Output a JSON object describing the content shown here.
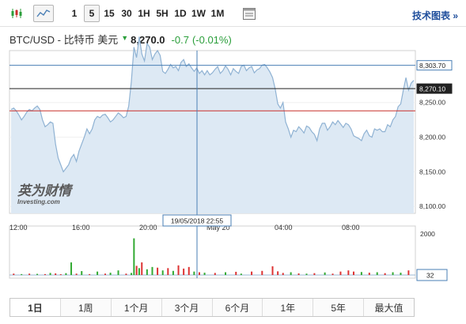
{
  "toolbar": {
    "chart_type_buttons": [
      {
        "icon": "candlestick-icon"
      },
      {
        "icon": "area-chart-icon",
        "selected": true
      }
    ],
    "timeframes": [
      {
        "label": "1"
      },
      {
        "label": "5",
        "selected": true
      },
      {
        "label": "15"
      },
      {
        "label": "30"
      },
      {
        "label": "1H"
      },
      {
        "label": "5H"
      },
      {
        "label": "1D"
      },
      {
        "label": "1W"
      },
      {
        "label": "1M"
      }
    ],
    "table_icon": "table-icon",
    "tech_chart_label": "技术图表 »"
  },
  "quote": {
    "symbol": "BTC/USD - 比特币 美元",
    "direction_icon": "triangle-down-icon",
    "price": "8,270.0",
    "change": "-0.7",
    "change_pct": "(-0.01%)",
    "up_color": "#2a9e3a"
  },
  "logo": {
    "cn": "英为财情",
    "en": "Investing.com"
  },
  "chart_data": {
    "type": "area",
    "title": "BTC/USD - 比特币 美元",
    "ylim": [
      8090,
      8325
    ],
    "y_ticks": [
      "8,250.00",
      "8,200.00",
      "8,150.00",
      "8,100.00"
    ],
    "x_ticks": [
      "12:00",
      "16:00",
      "20:00",
      "May 20",
      "04:00",
      "08:00"
    ],
    "hover_date": "19/05/2018 22:55",
    "price_labels": {
      "high": "8,303.70",
      "current": "8,270.10"
    },
    "reference_lines": {
      "high": 8303.7,
      "current": 8270.1,
      "open": 8238
    },
    "series": [
      {
        "values": [
          8240,
          8242,
          8238,
          8232,
          8225,
          8230,
          8236,
          8240,
          8238,
          8242,
          8245,
          8240,
          8225,
          8215,
          8218,
          8222,
          8220,
          8190,
          8170,
          8160,
          8150,
          8155,
          8160,
          8170,
          8175,
          8165,
          8180,
          8190,
          8200,
          8212,
          8205,
          8212,
          8225,
          8230,
          8228,
          8232,
          8233,
          8228,
          8222,
          8225,
          8230,
          8235,
          8232,
          8228,
          8230,
          8245,
          8280,
          8330,
          8315,
          8345,
          8320,
          8310,
          8335,
          8330,
          8312,
          8320,
          8325,
          8318,
          8295,
          8292,
          8298,
          8305,
          8300,
          8302,
          8296,
          8308,
          8312,
          8302,
          8306,
          8300,
          8295,
          8300,
          8292,
          8296,
          8290,
          8296,
          8290,
          8293,
          8298,
          8302,
          8292,
          8296,
          8303,
          8298,
          8290,
          8299,
          8295,
          8292,
          8302,
          8304,
          8296,
          8300,
          8302,
          8293,
          8297,
          8299,
          8304,
          8305,
          8300,
          8294,
          8286,
          8270,
          8248,
          8242,
          8250,
          8222,
          8212,
          8200,
          8210,
          8208,
          8215,
          8211,
          8206,
          8216,
          8214,
          8208,
          8204,
          8195,
          8212,
          8220,
          8220,
          8210,
          8215,
          8222,
          8218,
          8224,
          8219,
          8214,
          8220,
          8218,
          8212,
          8202,
          8200,
          8198,
          8195,
          8205,
          8210,
          8202,
          8200,
          8212,
          8210,
          8212,
          8208,
          8208,
          8218,
          8215,
          8225,
          8230,
          8244,
          8248,
          8268,
          8286,
          8268,
          8278,
          8282
        ]
      }
    ],
    "volume_ylabel": "2000",
    "volume_last": "32",
    "volume": [
      {
        "i": 1,
        "v": 60,
        "c": "#d33"
      },
      {
        "i": 4,
        "v": 40,
        "c": "#3a3"
      },
      {
        "i": 7,
        "v": 60,
        "c": "#d33"
      },
      {
        "i": 10,
        "v": 50,
        "c": "#3a3"
      },
      {
        "i": 13,
        "v": 40,
        "c": "#d33"
      },
      {
        "i": 15,
        "v": 90,
        "c": "#3a3"
      },
      {
        "i": 17,
        "v": 70,
        "c": "#d33"
      },
      {
        "i": 19,
        "v": 30,
        "c": "#d33"
      },
      {
        "i": 21,
        "v": 80,
        "c": "#3a3"
      },
      {
        "i": 23,
        "v": 550,
        "c": "#3a3"
      },
      {
        "i": 25,
        "v": 60,
        "c": "#d33"
      },
      {
        "i": 27,
        "v": 170,
        "c": "#3a3"
      },
      {
        "i": 30,
        "v": 40,
        "c": "#d33"
      },
      {
        "i": 33,
        "v": 150,
        "c": "#3a3"
      },
      {
        "i": 36,
        "v": 60,
        "c": "#d33"
      },
      {
        "i": 38,
        "v": 100,
        "c": "#3a3"
      },
      {
        "i": 41,
        "v": 200,
        "c": "#3a3"
      },
      {
        "i": 44,
        "v": 60,
        "c": "#d33"
      },
      {
        "i": 46,
        "v": 90,
        "c": "#3a3"
      },
      {
        "i": 47,
        "v": 1600,
        "c": "#3a3"
      },
      {
        "i": 48,
        "v": 400,
        "c": "#d33"
      },
      {
        "i": 49,
        "v": 300,
        "c": "#3a3"
      },
      {
        "i": 50,
        "v": 550,
        "c": "#d33"
      },
      {
        "i": 52,
        "v": 250,
        "c": "#3a3"
      },
      {
        "i": 54,
        "v": 350,
        "c": "#3a3"
      },
      {
        "i": 56,
        "v": 320,
        "c": "#d33"
      },
      {
        "i": 58,
        "v": 200,
        "c": "#3a3"
      },
      {
        "i": 60,
        "v": 300,
        "c": "#d33"
      },
      {
        "i": 62,
        "v": 180,
        "c": "#3a3"
      },
      {
        "i": 64,
        "v": 420,
        "c": "#d33"
      },
      {
        "i": 66,
        "v": 280,
        "c": "#d33"
      },
      {
        "i": 68,
        "v": 350,
        "c": "#d33"
      },
      {
        "i": 70,
        "v": 150,
        "c": "#3a3"
      },
      {
        "i": 72,
        "v": 120,
        "c": "#d33"
      },
      {
        "i": 74,
        "v": 100,
        "c": "#3a3"
      },
      {
        "i": 78,
        "v": 90,
        "c": "#d33"
      },
      {
        "i": 82,
        "v": 120,
        "c": "#3a3"
      },
      {
        "i": 86,
        "v": 140,
        "c": "#d33"
      },
      {
        "i": 88,
        "v": 60,
        "c": "#3a3"
      },
      {
        "i": 92,
        "v": 150,
        "c": "#d33"
      },
      {
        "i": 96,
        "v": 180,
        "c": "#d33"
      },
      {
        "i": 100,
        "v": 380,
        "c": "#d33"
      },
      {
        "i": 102,
        "v": 160,
        "c": "#d33"
      },
      {
        "i": 104,
        "v": 90,
        "c": "#d33"
      },
      {
        "i": 107,
        "v": 120,
        "c": "#3a3"
      },
      {
        "i": 110,
        "v": 70,
        "c": "#d33"
      },
      {
        "i": 113,
        "v": 60,
        "c": "#3a3"
      },
      {
        "i": 116,
        "v": 80,
        "c": "#d33"
      },
      {
        "i": 120,
        "v": 110,
        "c": "#3a3"
      },
      {
        "i": 123,
        "v": 60,
        "c": "#d33"
      },
      {
        "i": 126,
        "v": 150,
        "c": "#d33"
      },
      {
        "i": 129,
        "v": 200,
        "c": "#d33"
      },
      {
        "i": 131,
        "v": 150,
        "c": "#d33"
      },
      {
        "i": 134,
        "v": 130,
        "c": "#3a3"
      },
      {
        "i": 137,
        "v": 100,
        "c": "#d33"
      },
      {
        "i": 140,
        "v": 120,
        "c": "#3a3"
      },
      {
        "i": 143,
        "v": 80,
        "c": "#d33"
      },
      {
        "i": 146,
        "v": 120,
        "c": "#3a3"
      },
      {
        "i": 149,
        "v": 100,
        "c": "#3a3"
      },
      {
        "i": 152,
        "v": 200,
        "c": "#d33"
      }
    ],
    "colors": {
      "area_fill": "#dde9f4",
      "line": "#8fb2d3",
      "high_line": "#4a7fb5",
      "current_line": "#222222",
      "open_line": "#c9302c",
      "crosshair": "#4a7fb5"
    }
  },
  "range_tabs": [
    {
      "label": "1日",
      "active": true
    },
    {
      "label": "1周"
    },
    {
      "label": "1个月"
    },
    {
      "label": "3个月"
    },
    {
      "label": "6个月"
    },
    {
      "label": "1年"
    },
    {
      "label": "5年"
    },
    {
      "label": "最大值"
    }
  ]
}
